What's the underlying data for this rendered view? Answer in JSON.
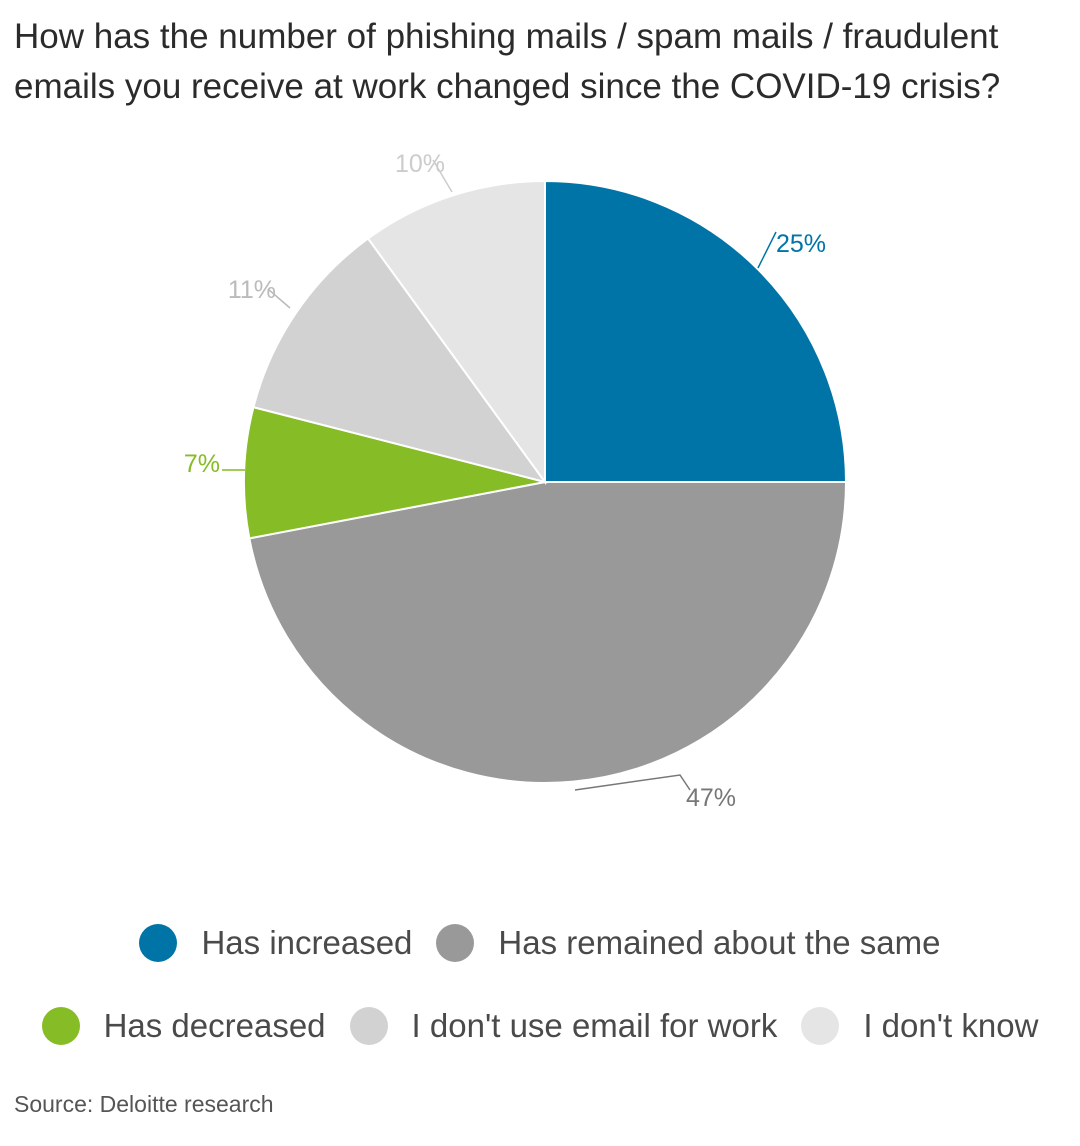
{
  "title": {
    "line1": "How has the number of phishing mails / spam mails / fraudulent",
    "line2": "emails you receive at work changed since the COVID-19 crisis?"
  },
  "chart_data": {
    "type": "pie",
    "slices": [
      {
        "name": "Has increased",
        "value": 25,
        "label": "25%",
        "color": "#0074a6",
        "label_color": "#0074a6"
      },
      {
        "name": "Has remained about the same",
        "value": 47,
        "label": "47%",
        "color": "#999999",
        "label_color": "#777777"
      },
      {
        "name": "Has decreased",
        "value": 7,
        "label": "7%",
        "color": "#86bc25",
        "label_color": "#86bc25"
      },
      {
        "name": "I don't use email for work",
        "value": 11,
        "label": "11%",
        "color": "#d2d2d2",
        "label_color": "#bbbbbb"
      },
      {
        "name": "I don't know",
        "value": 10,
        "label": "10%",
        "color": "#e5e5e5",
        "label_color": "#cccccc"
      }
    ],
    "legend_position": "bottom"
  },
  "legend": {
    "row1": [
      {
        "label": "Has increased",
        "color": "#0074a6"
      },
      {
        "label": "Has remained about the same",
        "color": "#999999"
      }
    ],
    "row2": [
      {
        "label": "Has decreased",
        "color": "#86bc25"
      },
      {
        "label": "I don't use email for work",
        "color": "#d2d2d2"
      },
      {
        "label": "I don't know",
        "color": "#e5e5e5"
      }
    ]
  },
  "source": "Source: Deloitte research"
}
